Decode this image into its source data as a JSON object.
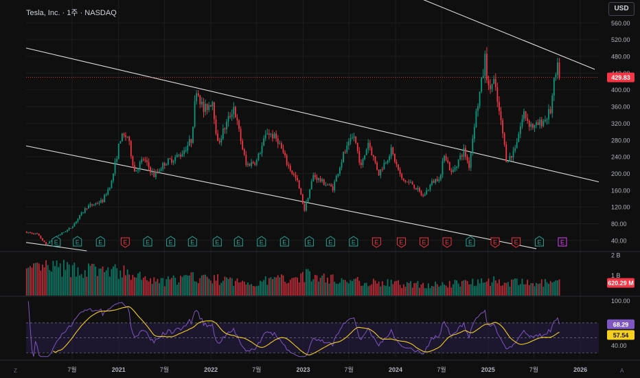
{
  "header": {
    "symbol_line": "Tesla, Inc. · 1주 · NASDAQ",
    "currency_button": "USD"
  },
  "footer": {
    "left_letter": "Z",
    "right_letter": "A"
  },
  "colors": {
    "background": "#0f0f0f",
    "grid": "#1e1e1e",
    "up": "#089981",
    "down": "#f23645",
    "trendline": "#e0e0e0",
    "rsi_line": "#7e57c2",
    "rsi_ma": "#f5d020",
    "rsi_band": "#2a1e4a",
    "current_price": "#f23645",
    "earnings_up": "#26a69a",
    "earnings_down": "#f23645",
    "earnings_future": "#e040fb"
  },
  "chart_data": [
    {
      "type": "candlestick",
      "title": "Tesla, Inc. · 1주 · NASDAQ",
      "interval": "1W",
      "exchange": "NASDAQ",
      "currency": "USD",
      "x_ticks": [
        "7월",
        "2021",
        "7월",
        "2022",
        "7월",
        "2023",
        "7월",
        "2024",
        "7월",
        "2025",
        "7월",
        "2026"
      ],
      "x_tick_dates": [
        "2020-07-01",
        "2021-01-01",
        "2021-07-01",
        "2022-01-01",
        "2022-07-01",
        "2023-01-01",
        "2023-07-01",
        "2024-01-01",
        "2024-07-01",
        "2025-01-01",
        "2025-07-01",
        "2026-01-01"
      ],
      "x_range": [
        "2020-01-01",
        "2026-03-15"
      ],
      "y_ticks": [
        40,
        80,
        120,
        160,
        200,
        240,
        280,
        320,
        360,
        400,
        440,
        480,
        520,
        560
      ],
      "y_tick_labels": [
        "40.00",
        "80.00",
        "120.00",
        "160.00",
        "200.00",
        "240.00",
        "280.00",
        "320.00",
        "360.00",
        "400.00",
        "440.00",
        "480.00",
        "520.00",
        "560.00"
      ],
      "ylim": [
        15,
        605
      ],
      "last_price": 429.83,
      "last_price_label": "429.83",
      "price_path": [
        [
          "2020-01-03",
          60
        ],
        [
          "2020-02-14",
          55
        ],
        [
          "2020-03-20",
          30
        ],
        [
          "2020-05-01",
          50
        ],
        [
          "2020-06-26",
          70
        ],
        [
          "2020-08-28",
          120
        ],
        [
          "2020-10-30",
          135
        ],
        [
          "2020-12-04",
          180
        ],
        [
          "2021-01-08",
          285
        ],
        [
          "2021-02-05",
          290
        ],
        [
          "2021-03-05",
          205
        ],
        [
          "2021-04-09",
          235
        ],
        [
          "2021-05-21",
          195
        ],
        [
          "2021-07-02",
          225
        ],
        [
          "2021-09-03",
          245
        ],
        [
          "2021-10-15",
          280
        ],
        [
          "2021-11-05",
          405
        ],
        [
          "2021-12-03",
          350
        ],
        [
          "2022-01-07",
          375
        ],
        [
          "2022-01-28",
          270
        ],
        [
          "2022-04-01",
          360
        ],
        [
          "2022-05-20",
          220
        ],
        [
          "2022-07-01",
          230
        ],
        [
          "2022-08-12",
          300
        ],
        [
          "2022-09-23",
          280
        ],
        [
          "2022-10-28",
          225
        ],
        [
          "2022-12-09",
          180
        ],
        [
          "2023-01-06",
          113
        ],
        [
          "2023-02-10",
          195
        ],
        [
          "2023-03-17",
          180
        ],
        [
          "2023-04-28",
          165
        ],
        [
          "2023-06-09",
          245
        ],
        [
          "2023-07-21",
          290
        ],
        [
          "2023-08-18",
          215
        ],
        [
          "2023-09-15",
          275
        ],
        [
          "2023-10-27",
          200
        ],
        [
          "2023-12-15",
          255
        ],
        [
          "2024-01-26",
          185
        ],
        [
          "2024-03-08",
          175
        ],
        [
          "2024-04-19",
          145
        ],
        [
          "2024-05-24",
          178
        ],
        [
          "2024-06-28",
          195
        ],
        [
          "2024-07-12",
          250
        ],
        [
          "2024-08-09",
          200
        ],
        [
          "2024-09-27",
          255
        ],
        [
          "2024-10-18",
          218
        ],
        [
          "2024-11-08",
          320
        ],
        [
          "2024-12-13",
          440
        ],
        [
          "2024-12-20",
          475
        ],
        [
          "2025-01-03",
          400
        ],
        [
          "2025-01-24",
          420
        ],
        [
          "2025-02-28",
          295
        ],
        [
          "2025-03-14",
          235
        ],
        [
          "2025-04-04",
          240
        ],
        [
          "2025-04-25",
          280
        ],
        [
          "2025-05-23",
          345
        ],
        [
          "2025-06-13",
          320
        ],
        [
          "2025-07-04",
          310
        ],
        [
          "2025-07-25",
          320
        ],
        [
          "2025-08-15",
          330
        ],
        [
          "2025-09-05",
          350
        ],
        [
          "2025-09-19",
          415
        ],
        [
          "2025-10-03",
          450
        ],
        [
          "2025-10-10",
          429.83
        ]
      ],
      "trend_channels": [
        {
          "name": "channel-upper",
          "from": [
            "2022-04-01",
            800
          ],
          "to": [
            "2026-02-27",
            449
          ]
        },
        {
          "name": "channel-middle",
          "from": [
            "2020-01-01",
            500
          ],
          "to": [
            "2026-03-15",
            180
          ]
        },
        {
          "name": "channel-lower",
          "from": [
            "2020-01-01",
            266
          ],
          "to": [
            "2025-07-11",
            20
          ]
        },
        {
          "name": "channel-bottom",
          "from": [
            "2020-01-01",
            35
          ],
          "to": [
            "2020-08-28",
            15
          ]
        }
      ],
      "earnings_markers": [
        {
          "date": "2020-04-29",
          "label": "E",
          "result": "up"
        },
        {
          "date": "2020-07-22",
          "label": "E",
          "result": "up"
        },
        {
          "date": "2020-10-21",
          "label": "E",
          "result": "up"
        },
        {
          "date": "2021-01-27",
          "label": "E",
          "result": "down"
        },
        {
          "date": "2021-04-26",
          "label": "E",
          "result": "up"
        },
        {
          "date": "2021-07-26",
          "label": "E",
          "result": "up"
        },
        {
          "date": "2021-10-20",
          "label": "E",
          "result": "up"
        },
        {
          "date": "2022-01-26",
          "label": "E",
          "result": "up"
        },
        {
          "date": "2022-04-20",
          "label": "E",
          "result": "up"
        },
        {
          "date": "2022-07-20",
          "label": "E",
          "result": "up"
        },
        {
          "date": "2022-10-19",
          "label": "E",
          "result": "up"
        },
        {
          "date": "2023-01-25",
          "label": "E",
          "result": "up"
        },
        {
          "date": "2023-04-19",
          "label": "E",
          "result": "up"
        },
        {
          "date": "2023-07-19",
          "label": "E",
          "result": "up"
        },
        {
          "date": "2023-10-18",
          "label": "E",
          "result": "down"
        },
        {
          "date": "2024-01-24",
          "label": "E",
          "result": "down"
        },
        {
          "date": "2024-04-23",
          "label": "E",
          "result": "down"
        },
        {
          "date": "2024-07-23",
          "label": "E",
          "result": "down"
        },
        {
          "date": "2024-10-23",
          "label": "E",
          "result": "up"
        },
        {
          "date": "2025-01-29",
          "label": "E",
          "result": "down"
        },
        {
          "date": "2025-04-22",
          "label": "E",
          "result": "down"
        },
        {
          "date": "2025-07-23",
          "label": "E",
          "result": "up"
        },
        {
          "date": "2025-10-22",
          "label": "E",
          "result": "future"
        }
      ]
    },
    {
      "type": "bar",
      "name": "volume",
      "y_ticks": [
        1000000000,
        2000000000
      ],
      "y_tick_labels": [
        "1 B",
        "2 B"
      ],
      "ylim": [
        0,
        2100000000
      ],
      "last_value": 620290000,
      "last_value_label": "620.29 M",
      "volume_profile": [
        [
          "2020-01-03",
          1150000000
        ],
        [
          "2020-03-20",
          1350000000
        ],
        [
          "2020-08-28",
          1250000000
        ],
        [
          "2021-01-08",
          1150000000
        ],
        [
          "2021-06-04",
          650000000
        ],
        [
          "2021-11-05",
          900000000
        ],
        [
          "2022-06-03",
          600000000
        ],
        [
          "2023-01-06",
          1000000000
        ],
        [
          "2023-06-09",
          750000000
        ],
        [
          "2024-01-26",
          560000000
        ],
        [
          "2024-07-12",
          520000000
        ],
        [
          "2024-12-13",
          780000000
        ],
        [
          "2025-03-14",
          640000000
        ],
        [
          "2025-07-25",
          600000000
        ],
        [
          "2025-10-10",
          620290000
        ]
      ]
    },
    {
      "type": "line",
      "name": "rsi",
      "y_ticks": [
        40,
        100
      ],
      "y_tick_labels": [
        "40.00",
        "100.00"
      ],
      "ylim": [
        22,
        104
      ],
      "bands": [
        30,
        50,
        70
      ],
      "rsi_last": 68.29,
      "rsi_last_label": "68.29",
      "ma_last": 57.54,
      "ma_last_label": "57.54"
    }
  ]
}
